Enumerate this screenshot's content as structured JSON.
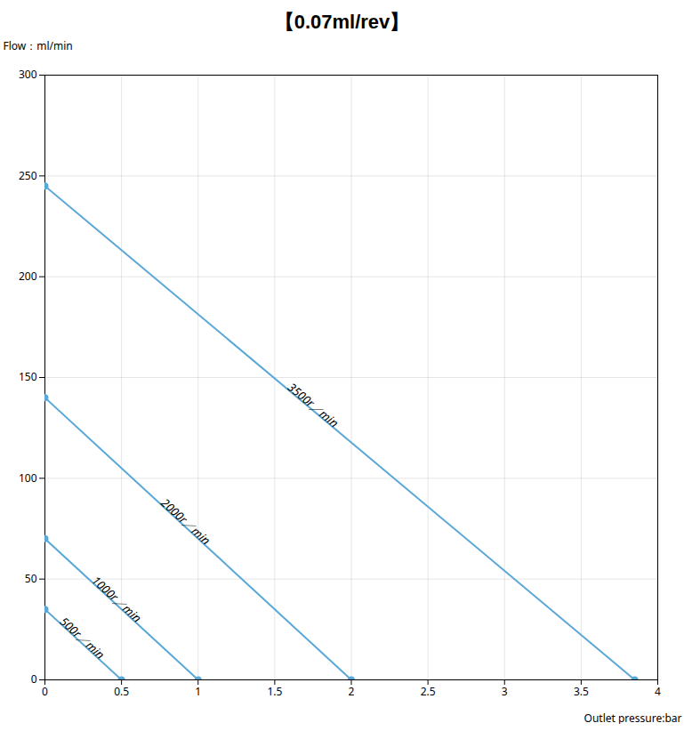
{
  "chart_data": {
    "type": "line",
    "title": "【0.07ml/rev】",
    "xlabel": "Outlet pressure:bar",
    "ylabel": "Flow：ml/min",
    "xlim": [
      0,
      4
    ],
    "ylim": [
      0,
      300
    ],
    "xticks": [
      0,
      0.5,
      1,
      1.5,
      2,
      2.5,
      3,
      3.5,
      4
    ],
    "yticks": [
      0,
      50,
      100,
      150,
      200,
      250,
      300
    ],
    "grid": true,
    "series": [
      {
        "name": "500r／min",
        "x": [
          0,
          0.5
        ],
        "values": [
          35,
          0
        ],
        "color": "#5aa8d8",
        "marker": "circle"
      },
      {
        "name": "1000r／min",
        "x": [
          0,
          1.0
        ],
        "values": [
          70,
          0
        ],
        "color": "#5aa8d8",
        "marker": "circle"
      },
      {
        "name": "2000r／min",
        "x": [
          0,
          2.0
        ],
        "values": [
          140,
          0
        ],
        "color": "#5aa8d8",
        "marker": "circle"
      },
      {
        "name": "3500r／min",
        "x": [
          0,
          3.85
        ],
        "values": [
          245,
          0
        ],
        "color": "#5aa8d8",
        "marker": "circle"
      }
    ]
  }
}
